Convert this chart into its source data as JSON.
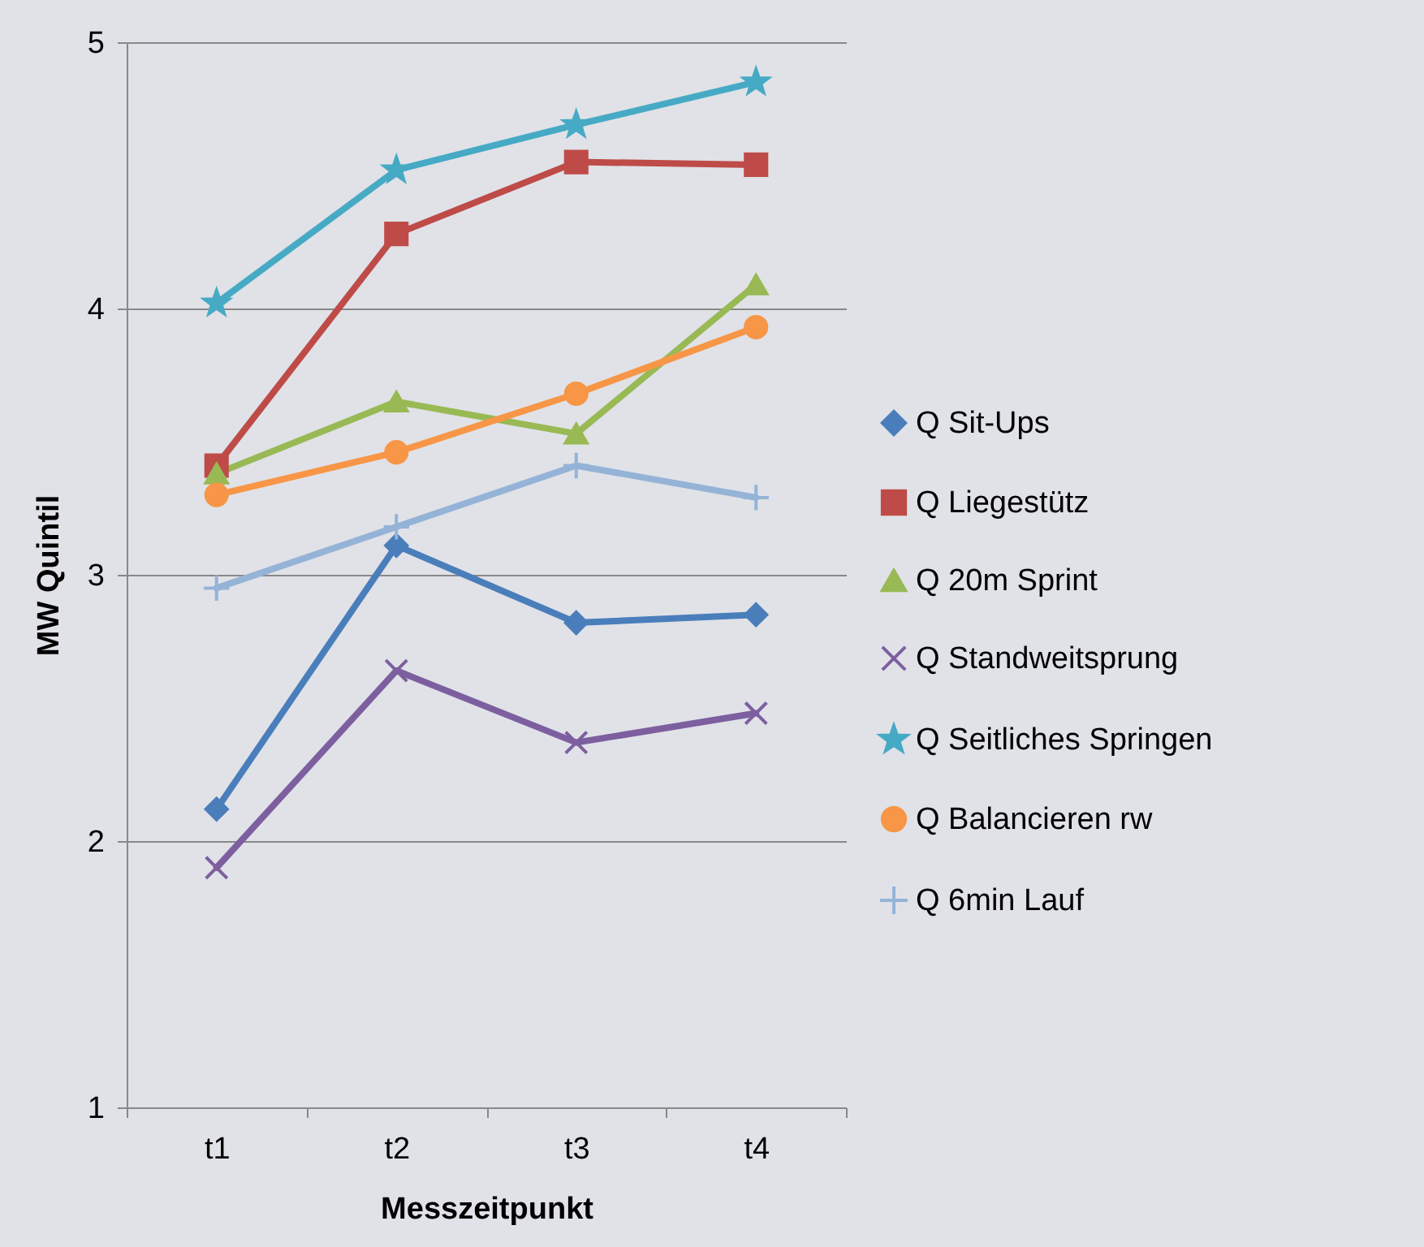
{
  "chart_data": {
    "type": "line",
    "xlabel": "Messzeitpunkt",
    "ylabel": "MW Quintil",
    "categories": [
      "t1",
      "t2",
      "t3",
      "t4"
    ],
    "ylim": [
      1,
      5
    ],
    "yticks": [
      1,
      2,
      3,
      4,
      5
    ],
    "grid": "y",
    "legend": "right",
    "series": [
      {
        "name": "Q Sit-Ups",
        "color": "#4a7ebb",
        "marker": "diamond",
        "values": [
          2.12,
          3.11,
          2.82,
          2.85
        ]
      },
      {
        "name": "Q Liegestütz",
        "color": "#be4b48",
        "marker": "square",
        "values": [
          3.41,
          4.28,
          4.55,
          4.54
        ]
      },
      {
        "name": "Q 20m Sprint",
        "color": "#98b954",
        "marker": "triangle",
        "values": [
          3.38,
          3.65,
          3.53,
          4.09
        ]
      },
      {
        "name": "Q Standweitsprung",
        "color": "#7d5fa0",
        "marker": "cross",
        "values": [
          1.9,
          2.64,
          2.37,
          2.48
        ]
      },
      {
        "name": "Q Seitliches Springen",
        "color": "#46aac5",
        "marker": "star",
        "values": [
          4.02,
          4.52,
          4.69,
          4.85
        ]
      },
      {
        "name": "Q Balancieren rw",
        "color": "#f79646",
        "marker": "circle",
        "values": [
          3.3,
          3.46,
          3.68,
          3.93
        ]
      },
      {
        "name": "Q 6min Lauf",
        "color": "#95b3d7",
        "marker": "plus",
        "values": [
          2.95,
          3.18,
          3.41,
          3.29
        ]
      }
    ]
  }
}
